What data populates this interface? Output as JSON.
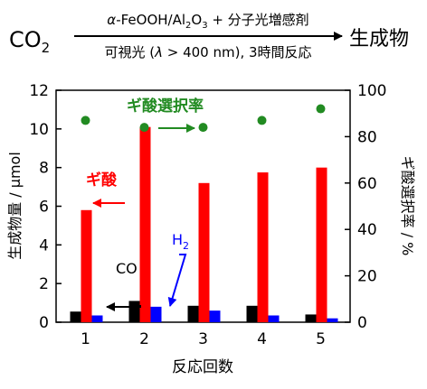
{
  "header": {
    "reactant": "CO",
    "reactant_sub": "2",
    "conditions_top": {
      "alpha": "α",
      "catalyst_a": "-FeOOH/Al",
      "sub1": "2",
      "catalyst_b": "O",
      "sub2": "3",
      "catalyst_c": " + 分子光増感剤"
    },
    "conditions_bottom": {
      "part_a": "可視光 (",
      "lambda": "λ",
      "part_b": " > 400 nm),  3時間反応"
    },
    "product": "生成物"
  },
  "annotations": {
    "selectivity_label": "ギ酸選択率",
    "formic_label": "ギ酸",
    "co_label": "CO",
    "h2_label": "H",
    "h2_sub": "2"
  },
  "colors": {
    "formic_acid": "#ff0000",
    "co": "#000000",
    "h2": "#0000ff",
    "selectivity": "#228b22"
  },
  "chart_data": {
    "type": "bar",
    "categories": [
      "1",
      "2",
      "3",
      "4",
      "5"
    ],
    "xlabel": "反応回数",
    "ylabel": "生成物量 / μmol",
    "y2label": "ギ酸選択率 / %",
    "ylim": [
      0,
      12
    ],
    "y2lim": [
      0,
      100
    ],
    "yticks": [
      "0",
      "2",
      "4",
      "6",
      "8",
      "10",
      "12"
    ],
    "y2ticks": [
      "0",
      "20",
      "40",
      "60",
      "80",
      "100"
    ],
    "series": [
      {
        "name": "CO",
        "axis": "left",
        "kind": "bar",
        "values": [
          0.55,
          1.1,
          0.85,
          0.85,
          0.4
        ]
      },
      {
        "name": "ギ酸",
        "axis": "left",
        "kind": "bar",
        "values": [
          5.8,
          10.1,
          7.2,
          7.75,
          8.0
        ]
      },
      {
        "name": "H2",
        "axis": "left",
        "kind": "bar",
        "values": [
          0.35,
          0.8,
          0.6,
          0.35,
          0.2
        ]
      },
      {
        "name": "ギ酸選択率",
        "axis": "right",
        "kind": "point",
        "values": [
          87,
          84,
          84,
          87,
          92
        ]
      }
    ]
  }
}
